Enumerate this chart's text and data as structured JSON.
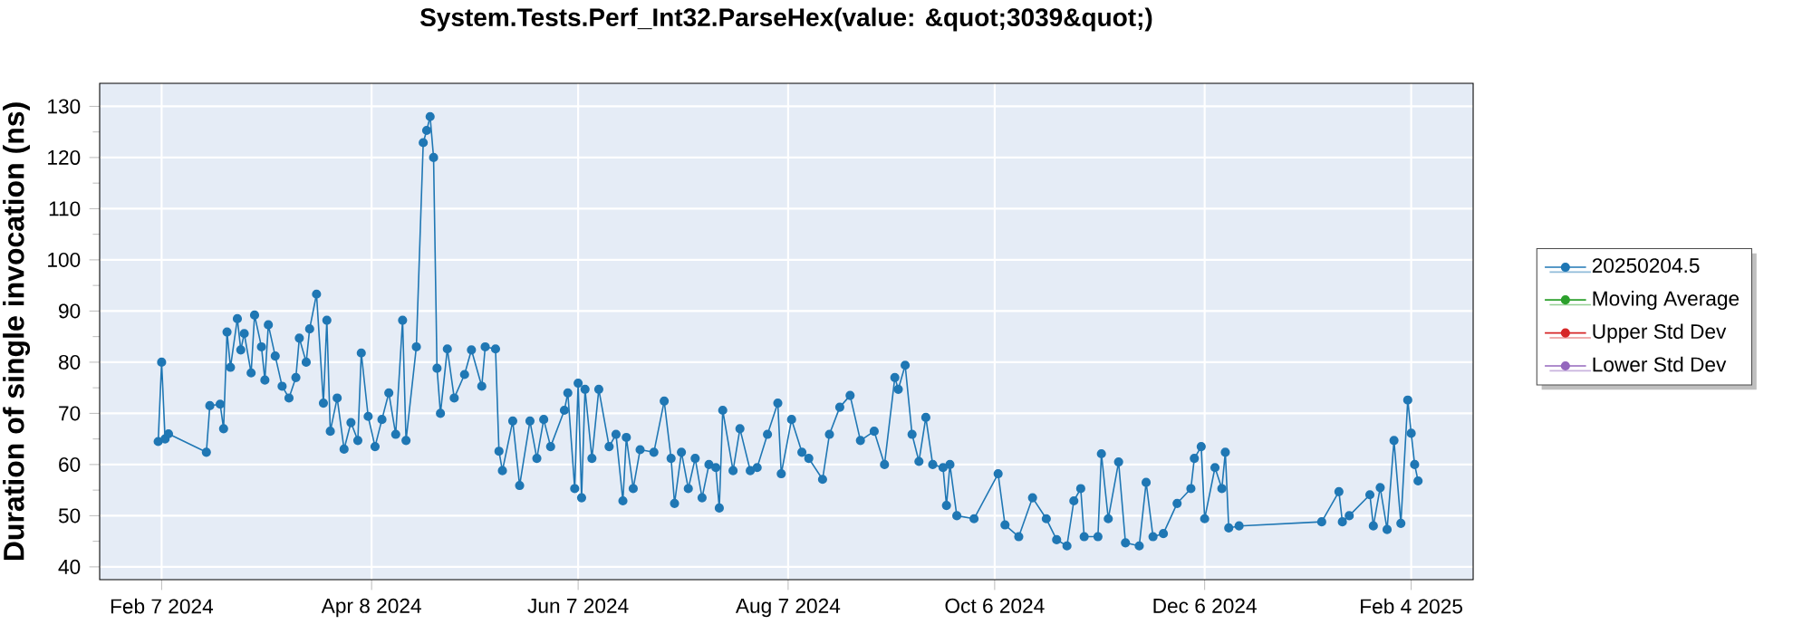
{
  "chart_data": {
    "type": "line",
    "title": "System.Tests.Perf_Int32.ParseHex(value: &quot;3039&quot;)",
    "ylabel": "Duration of single invocation (ns)",
    "xlim": [
      "2024-01-20",
      "2025-02-22"
    ],
    "ylim": [
      37.5,
      134.5
    ],
    "xticks": [
      {
        "value": "2024-02-07",
        "label": "Feb 7 2024"
      },
      {
        "value": "2024-04-08",
        "label": "Apr 8 2024"
      },
      {
        "value": "2024-06-07",
        "label": "Jun 7 2024"
      },
      {
        "value": "2024-08-07",
        "label": "Aug 7 2024"
      },
      {
        "value": "2024-10-06",
        "label": "Oct 6 2024"
      },
      {
        "value": "2024-12-06",
        "label": "Dec 6 2024"
      },
      {
        "value": "2025-02-04",
        "label": "Feb 4 2025"
      }
    ],
    "yticks": [
      40,
      50,
      60,
      70,
      80,
      90,
      100,
      110,
      120,
      130
    ],
    "grid": true,
    "legend": "right",
    "marker": "circle",
    "line_style": "solid",
    "series": [
      {
        "name": "20250204.5",
        "color": "#1f77b4",
        "x": [
          "2024-02-06",
          "2024-02-07",
          "2024-02-08",
          "2024-02-09",
          "2024-02-20",
          "2024-02-21",
          "2024-02-24",
          "2024-02-25",
          "2024-02-26",
          "2024-02-27",
          "2024-02-29",
          "2024-03-01",
          "2024-03-02",
          "2024-03-04",
          "2024-03-05",
          "2024-03-07",
          "2024-03-08",
          "2024-03-09",
          "2024-03-11",
          "2024-03-13",
          "2024-03-15",
          "2024-03-17",
          "2024-03-18",
          "2024-03-20",
          "2024-03-21",
          "2024-03-23",
          "2024-03-25",
          "2024-03-26",
          "2024-03-27",
          "2024-03-29",
          "2024-03-31",
          "2024-04-02",
          "2024-04-04",
          "2024-04-05",
          "2024-04-07",
          "2024-04-09",
          "2024-04-11",
          "2024-04-13",
          "2024-04-15",
          "2024-04-17",
          "2024-04-18",
          "2024-04-21",
          "2024-04-23",
          "2024-04-24",
          "2024-04-25",
          "2024-04-26",
          "2024-04-27",
          "2024-04-28",
          "2024-04-30",
          "2024-05-02",
          "2024-05-05",
          "2024-05-07",
          "2024-05-10",
          "2024-05-11",
          "2024-05-14",
          "2024-05-15",
          "2024-05-16",
          "2024-05-19",
          "2024-05-21",
          "2024-05-24",
          "2024-05-26",
          "2024-05-28",
          "2024-05-30",
          "2024-06-03",
          "2024-06-04",
          "2024-06-06",
          "2024-06-07",
          "2024-06-08",
          "2024-06-09",
          "2024-06-11",
          "2024-06-13",
          "2024-06-16",
          "2024-06-18",
          "2024-06-20",
          "2024-06-21",
          "2024-06-23",
          "2024-06-25",
          "2024-06-29",
          "2024-07-02",
          "2024-07-04",
          "2024-07-05",
          "2024-07-07",
          "2024-07-09",
          "2024-07-11",
          "2024-07-13",
          "2024-07-15",
          "2024-07-17",
          "2024-07-18",
          "2024-07-19",
          "2024-07-22",
          "2024-07-24",
          "2024-07-27",
          "2024-07-29",
          "2024-08-01",
          "2024-08-04",
          "2024-08-05",
          "2024-08-08",
          "2024-08-11",
          "2024-08-13",
          "2024-08-17",
          "2024-08-19",
          "2024-08-22",
          "2024-08-25",
          "2024-08-28",
          "2024-09-01",
          "2024-09-04",
          "2024-09-07",
          "2024-09-08",
          "2024-09-10",
          "2024-09-12",
          "2024-09-14",
          "2024-09-16",
          "2024-09-18",
          "2024-09-21",
          "2024-09-22",
          "2024-09-23",
          "2024-09-25",
          "2024-09-30",
          "2024-10-07",
          "2024-10-09",
          "2024-10-13",
          "2024-10-17",
          "2024-10-21",
          "2024-10-24",
          "2024-10-27",
          "2024-10-29",
          "2024-10-31",
          "2024-11-01",
          "2024-11-05",
          "2024-11-06",
          "2024-11-08",
          "2024-11-11",
          "2024-11-13",
          "2024-11-17",
          "2024-11-19",
          "2024-11-21",
          "2024-11-24",
          "2024-11-28",
          "2024-12-02",
          "2024-12-03",
          "2024-12-05",
          "2024-12-06",
          "2024-12-09",
          "2024-12-11",
          "2024-12-12",
          "2024-12-13",
          "2024-12-16",
          "2025-01-09",
          "2025-01-14",
          "2025-01-15",
          "2025-01-17",
          "2025-01-23",
          "2025-01-24",
          "2025-01-26",
          "2025-01-28",
          "2025-01-30",
          "2025-02-01",
          "2025-02-03",
          "2025-02-04",
          "2025-02-05",
          "2025-02-06"
        ],
        "values": [
          64.5,
          80,
          65,
          66,
          62.4,
          71.5,
          71.8,
          67,
          85.9,
          79,
          88.5,
          82.4,
          85.6,
          77.9,
          89.2,
          83,
          76.5,
          87.3,
          81.2,
          75.3,
          73,
          77,
          84.7,
          80,
          86.5,
          93.3,
          72,
          88.2,
          66.5,
          73,
          63,
          68.2,
          64.7,
          81.8,
          69.4,
          63.5,
          68.8,
          74,
          65.9,
          88.2,
          64.7,
          83,
          122.9,
          125.3,
          128,
          120,
          78.8,
          70,
          82.6,
          73,
          77.6,
          82.4,
          75.3,
          83,
          82.6,
          62.6,
          58.8,
          68.5,
          55.9,
          68.5,
          61.2,
          68.8,
          63.5,
          70.6,
          74,
          55.3,
          75.9,
          53.5,
          74.7,
          61.2,
          74.7,
          63.5,
          65.9,
          52.9,
          65.3,
          55.3,
          62.9,
          62.4,
          72.4,
          61.2,
          52.4,
          62.4,
          55.3,
          61.2,
          53.5,
          60,
          59.4,
          51.5,
          70.6,
          58.8,
          67,
          58.8,
          59.4,
          65.9,
          72,
          58.2,
          68.8,
          62.4,
          61.2,
          57.1,
          65.9,
          71.2,
          73.5,
          64.7,
          66.5,
          60,
          77,
          74.7,
          79.4,
          65.9,
          60.6,
          69.2,
          60,
          59.4,
          52,
          60,
          50,
          49.4,
          58.2,
          48.2,
          45.9,
          53.5,
          49.4,
          45.3,
          44.1,
          52.9,
          55.3,
          45.9,
          45.9,
          62.1,
          49.4,
          60.5,
          44.7,
          44.1,
          56.5,
          45.9,
          46.5,
          52.4,
          55.3,
          61.2,
          63.5,
          49.4,
          59.4,
          55.3,
          62.4,
          47.6,
          48,
          48.8,
          54.7,
          48.8,
          50,
          54.1,
          48,
          55.5,
          47.3,
          64.7,
          48.5,
          72.6,
          66.1,
          60,
          56.8
        ]
      },
      {
        "name": "Moving Average",
        "color": "#2ca02c"
      },
      {
        "name": "Upper Std Dev",
        "color": "#d62728"
      },
      {
        "name": "Lower Std Dev",
        "color": "#9467bd"
      }
    ]
  }
}
